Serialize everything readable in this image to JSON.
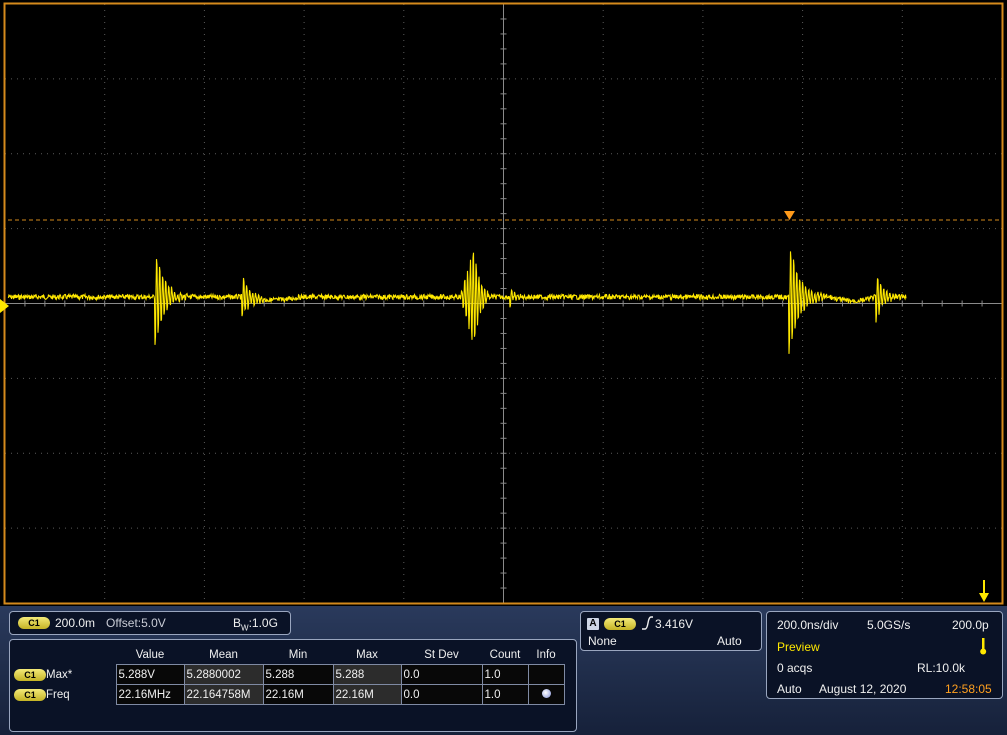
{
  "colors": {
    "trace": "#ffe800",
    "frame": "#d58a1c",
    "trigger": "#ff9a1a",
    "grid": "#7a7a7a"
  },
  "channel_badge": "C1",
  "vertical": {
    "scale": "200.0m",
    "offset": "Offset:5.0V",
    "bandwidth_sup": "B",
    "bandwidth_sub": "W",
    "bandwidth": ":1.0G"
  },
  "measurements": {
    "headers": [
      "Value",
      "Mean",
      "Min",
      "Max",
      "St Dev",
      "Count",
      "Info"
    ],
    "rows": [
      {
        "badge": "C1",
        "name": "Max*",
        "value": "5.288V",
        "mean": "5.2880002",
        "min": "5.288",
        "max": "5.288",
        "stdev": "0.0",
        "count": "1.0",
        "info": ""
      },
      {
        "badge": "C1",
        "name": "Freq",
        "value": "22.16MHz",
        "mean": "22.164758M",
        "min": "22.16M",
        "max": "22.16M",
        "stdev": "0.0",
        "count": "1.0",
        "info": "info-dot-icon"
      }
    ]
  },
  "trigger": {
    "label": "A",
    "source": "C1",
    "slope_icon": "rising-edge-icon",
    "level": "3.416V",
    "coupling": "None",
    "mode": "Auto"
  },
  "acquisition": {
    "timebase": "200.0ns/div",
    "sample_rate": "5.0GS/s",
    "resolution": "200.0p",
    "state": "Preview",
    "acqs": "0 acqs",
    "record_length": "RL:10.0k",
    "run_mode": "Auto",
    "date": "August 12, 2020",
    "time": "12:58:05"
  }
}
